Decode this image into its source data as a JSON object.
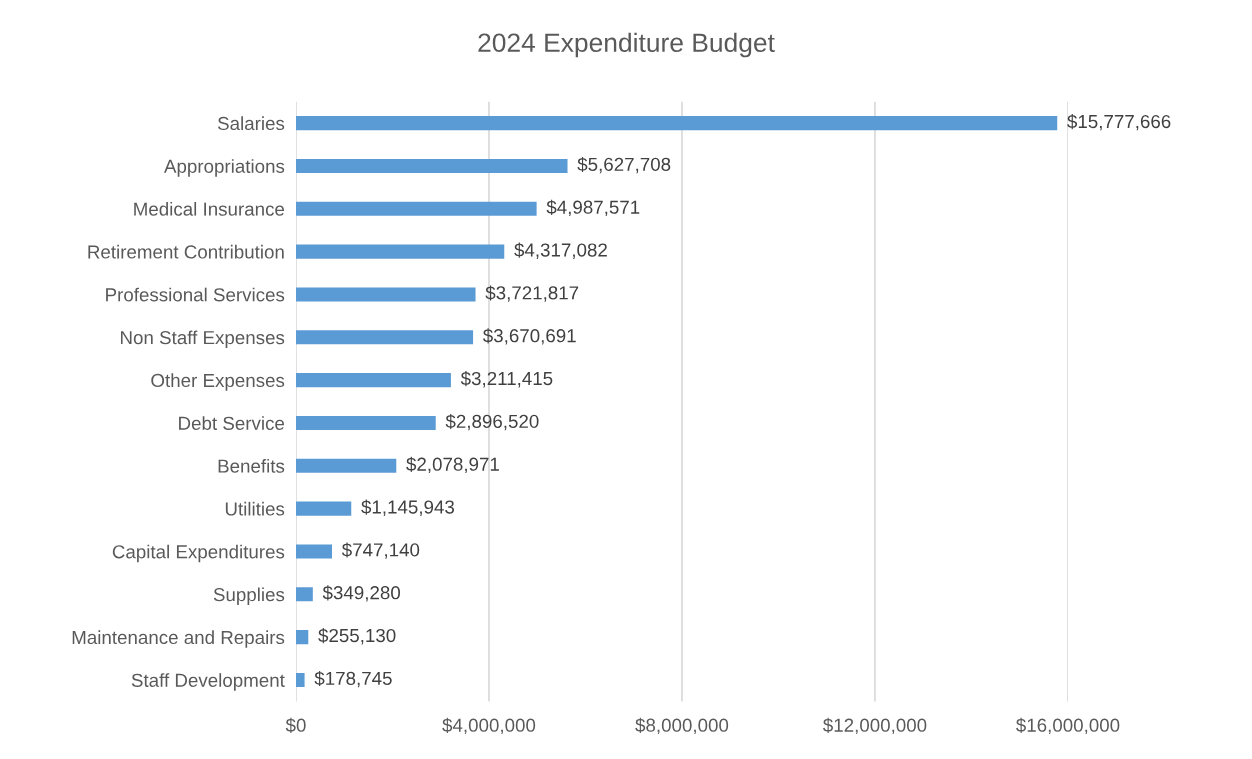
{
  "chart_data": {
    "type": "bar",
    "orientation": "horizontal",
    "title": "2024 Expenditure Budget",
    "categories": [
      "Salaries",
      "Appropriations",
      "Medical Insurance",
      "Retirement Contribution",
      "Professional Services",
      "Non Staff Expenses",
      "Other Expenses",
      "Debt Service",
      "Benefits",
      "Utilities",
      "Capital Expenditures",
      "Supplies",
      "Maintenance and Repairs",
      "Staff Development"
    ],
    "values": [
      15777666,
      5627708,
      4987571,
      4317082,
      3721817,
      3670691,
      3211415,
      2896520,
      2078971,
      1145943,
      747140,
      349280,
      255130,
      178745
    ],
    "value_labels": [
      "$15,777,666",
      "$5,627,708",
      "$4,987,571",
      "$4,317,082",
      "$3,721,817",
      "$3,670,691",
      "$3,211,415",
      "$2,896,520",
      "$2,078,971",
      "$1,145,943",
      "$747,140",
      "$349,280",
      "$255,130",
      "$178,745"
    ],
    "color": "#5b9bd5",
    "xlim": [
      0,
      16000000
    ],
    "xticks": [
      {
        "value": 0,
        "label": "$0"
      },
      {
        "value": 4000000,
        "label": "$4,000,000"
      },
      {
        "value": 8000000,
        "label": "$8,000,000"
      },
      {
        "value": 12000000,
        "label": "$12,000,000"
      },
      {
        "value": 16000000,
        "label": "$16,000,000"
      }
    ],
    "grid": "x",
    "legend": false
  }
}
